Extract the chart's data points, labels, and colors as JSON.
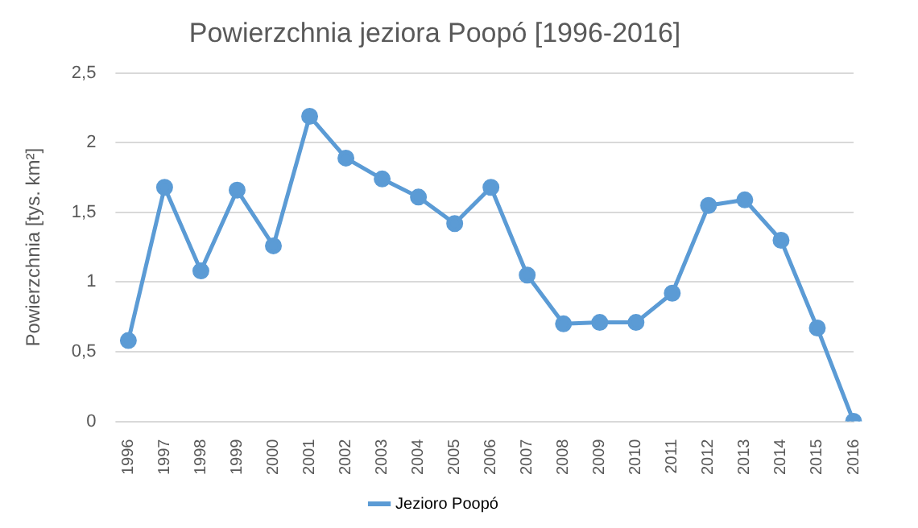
{
  "chart_data": {
    "type": "line",
    "title": "Powierzchnia jeziora Poopó [1996-2016]",
    "ylabel": "Powierzchnia [tys. km²]",
    "categories": [
      "1996",
      "1997",
      "1998",
      "1999",
      "2000",
      "2001",
      "2002",
      "2003",
      "2004",
      "2005",
      "2006",
      "2007",
      "2008",
      "2009",
      "2010",
      "2011",
      "2012",
      "2013",
      "2014",
      "2015",
      "2016"
    ],
    "series": [
      {
        "name": "Jezioro Poopó",
        "color": "#5b9bd5",
        "values": [
          0.58,
          1.68,
          1.08,
          1.66,
          1.26,
          2.19,
          1.89,
          1.74,
          1.61,
          1.42,
          1.68,
          1.05,
          0.7,
          0.71,
          0.71,
          0.92,
          1.55,
          1.59,
          1.3,
          0.67,
          0
        ]
      }
    ],
    "ylim": [
      0,
      2.5
    ],
    "yticks": [
      0,
      {
        "value": 0.5,
        "label": "0,5"
      },
      1,
      {
        "value": 1.5,
        "label": "1,5"
      },
      2,
      {
        "value": 2.5,
        "label": "2,5"
      }
    ],
    "grid": "y",
    "legend": "bottom",
    "marker": "circle",
    "line_style": "solid"
  }
}
